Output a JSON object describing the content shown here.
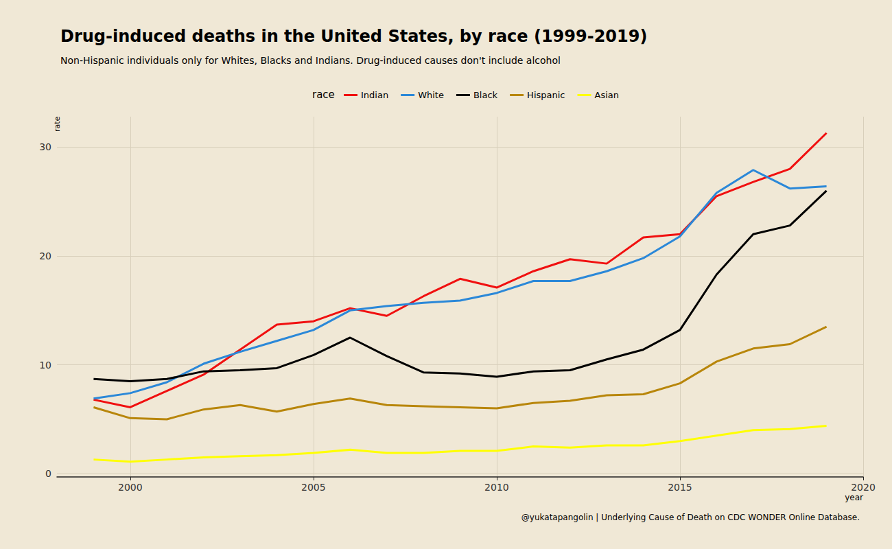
{
  "chart_data": {
    "type": "line",
    "title": "Drug-induced deaths in the United States, by race (1999-2019)",
    "subtitle": "Non-Hispanic individuals only for Whites, Blacks and Indians. Drug-induced causes don't include alcohol",
    "legend_title": "race",
    "x_label": "year",
    "y_label": "rate",
    "caption": "@yukatapangolin | Underlying Cause of Death on CDC WONDER Online Database.",
    "x": [
      1999,
      2000,
      2001,
      2002,
      2003,
      2004,
      2005,
      2006,
      2007,
      2008,
      2009,
      2010,
      2011,
      2012,
      2013,
      2014,
      2015,
      2016,
      2017,
      2018,
      2019
    ],
    "series": [
      {
        "name": "Indian",
        "color": "#f01010",
        "values": [
          6.8,
          6.1,
          7.6,
          9.1,
          11.4,
          13.7,
          14.0,
          15.2,
          14.5,
          16.3,
          17.9,
          17.1,
          18.6,
          19.7,
          19.3,
          21.7,
          22.0,
          25.5,
          26.8,
          28.0,
          31.3
        ]
      },
      {
        "name": "White",
        "color": "#2b88d8",
        "values": [
          6.9,
          7.4,
          8.4,
          10.1,
          11.2,
          12.2,
          13.2,
          15.0,
          15.4,
          15.7,
          15.9,
          16.6,
          17.7,
          17.7,
          18.6,
          19.8,
          21.8,
          25.8,
          27.9,
          26.2,
          26.4
        ]
      },
      {
        "name": "Black",
        "color": "#000000",
        "values": [
          8.7,
          8.5,
          8.7,
          9.4,
          9.5,
          9.7,
          10.9,
          12.5,
          10.8,
          9.3,
          9.2,
          8.9,
          9.4,
          9.5,
          10.5,
          11.4,
          13.2,
          18.3,
          22.0,
          22.8,
          26.0
        ]
      },
      {
        "name": "Hispanic",
        "color": "#b8860b",
        "values": [
          6.1,
          5.1,
          5.0,
          5.9,
          6.3,
          5.7,
          6.4,
          6.9,
          6.3,
          6.2,
          6.1,
          6.0,
          6.5,
          6.7,
          7.2,
          7.3,
          8.3,
          10.3,
          11.5,
          11.9,
          13.5
        ]
      },
      {
        "name": "Asian",
        "color": "#ffff00",
        "values": [
          1.3,
          1.1,
          1.3,
          1.5,
          1.6,
          1.7,
          1.9,
          2.2,
          1.9,
          1.9,
          2.1,
          2.1,
          2.5,
          2.4,
          2.6,
          2.6,
          3.0,
          3.5,
          4.0,
          4.1,
          4.4
        ]
      }
    ],
    "xlim": [
      1998,
      2020
    ],
    "xticks": [
      2000,
      2005,
      2010,
      2015,
      2020
    ],
    "ylim": [
      -0.3,
      32.8
    ],
    "yticks": [
      0,
      10,
      20,
      30
    ],
    "grid": true,
    "legend": "top"
  }
}
